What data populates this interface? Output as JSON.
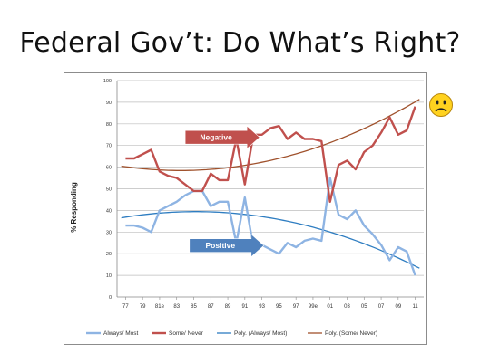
{
  "slide": {
    "title": "Federal Gov’t: Do What’s Right?"
  },
  "chart_data": {
    "type": "line",
    "ylabel": "% Responding",
    "ylim": [
      0,
      100
    ],
    "yticks": [
      0,
      10,
      20,
      30,
      40,
      50,
      60,
      70,
      80,
      90,
      100
    ],
    "x_tick_labels": [
      "77",
      "79",
      "81e",
      "83",
      "85",
      "87",
      "89",
      "91",
      "93",
      "95",
      "97",
      "99e",
      "01",
      "03",
      "05",
      "07",
      "09",
      "11"
    ],
    "grid": true,
    "legend_position": "bottom",
    "x_index_range": [
      -1,
      35
    ],
    "series": [
      {
        "name": "Always/ Most",
        "color": "#8eb4e3",
        "x": [
          0,
          1,
          2,
          3,
          4,
          5,
          6,
          7,
          8,
          9,
          10,
          11,
          12,
          13,
          14,
          15,
          16,
          17,
          18,
          19,
          20,
          21,
          22,
          23,
          24,
          25,
          26,
          27,
          28,
          29,
          30,
          31,
          32,
          33,
          34
        ],
        "values": [
          33,
          33,
          32,
          30,
          40,
          42,
          44,
          47,
          49,
          49,
          42,
          44,
          44,
          25,
          46,
          23,
          24,
          22,
          20,
          25,
          23,
          26,
          27,
          26,
          55,
          38,
          36,
          40,
          33,
          29,
          24,
          17,
          23,
          21,
          10
        ]
      },
      {
        "name": "Some/ Never",
        "color": "#c0504d",
        "x": [
          0,
          1,
          2,
          3,
          4,
          5,
          6,
          7,
          8,
          9,
          10,
          11,
          12,
          13,
          14,
          15,
          16,
          17,
          18,
          19,
          20,
          21,
          22,
          23,
          24,
          25,
          26,
          27,
          28,
          29,
          30,
          31,
          32,
          33,
          34
        ],
        "values": [
          64,
          64,
          66,
          68,
          58,
          56,
          55,
          52,
          49,
          49,
          57,
          54,
          54,
          73,
          52,
          75,
          75,
          78,
          79,
          73,
          76,
          73,
          73,
          72,
          44,
          61,
          63,
          59,
          67,
          70,
          76,
          83,
          75,
          77,
          88
        ]
      },
      {
        "name": "Poly. (Always/ Most)",
        "color": "#2e7dc1",
        "trend": "poly",
        "a": -0.0378,
        "b": 0.62,
        "c": 36.9
      },
      {
        "name": "Poly. (Some/ Never)",
        "color": "#a0522d",
        "trend": "poly",
        "a": 0.0418,
        "b": -0.54,
        "c": 60.2
      }
    ],
    "annotations": [
      {
        "text": "Negative",
        "color": "#c0504d"
      },
      {
        "text": "Positive",
        "color": "#4f81bd"
      }
    ]
  },
  "colors": {
    "face": "#ffd21f",
    "face_outline": "#b8860b"
  },
  "icons": {
    "corner": "sad-face-icon"
  }
}
